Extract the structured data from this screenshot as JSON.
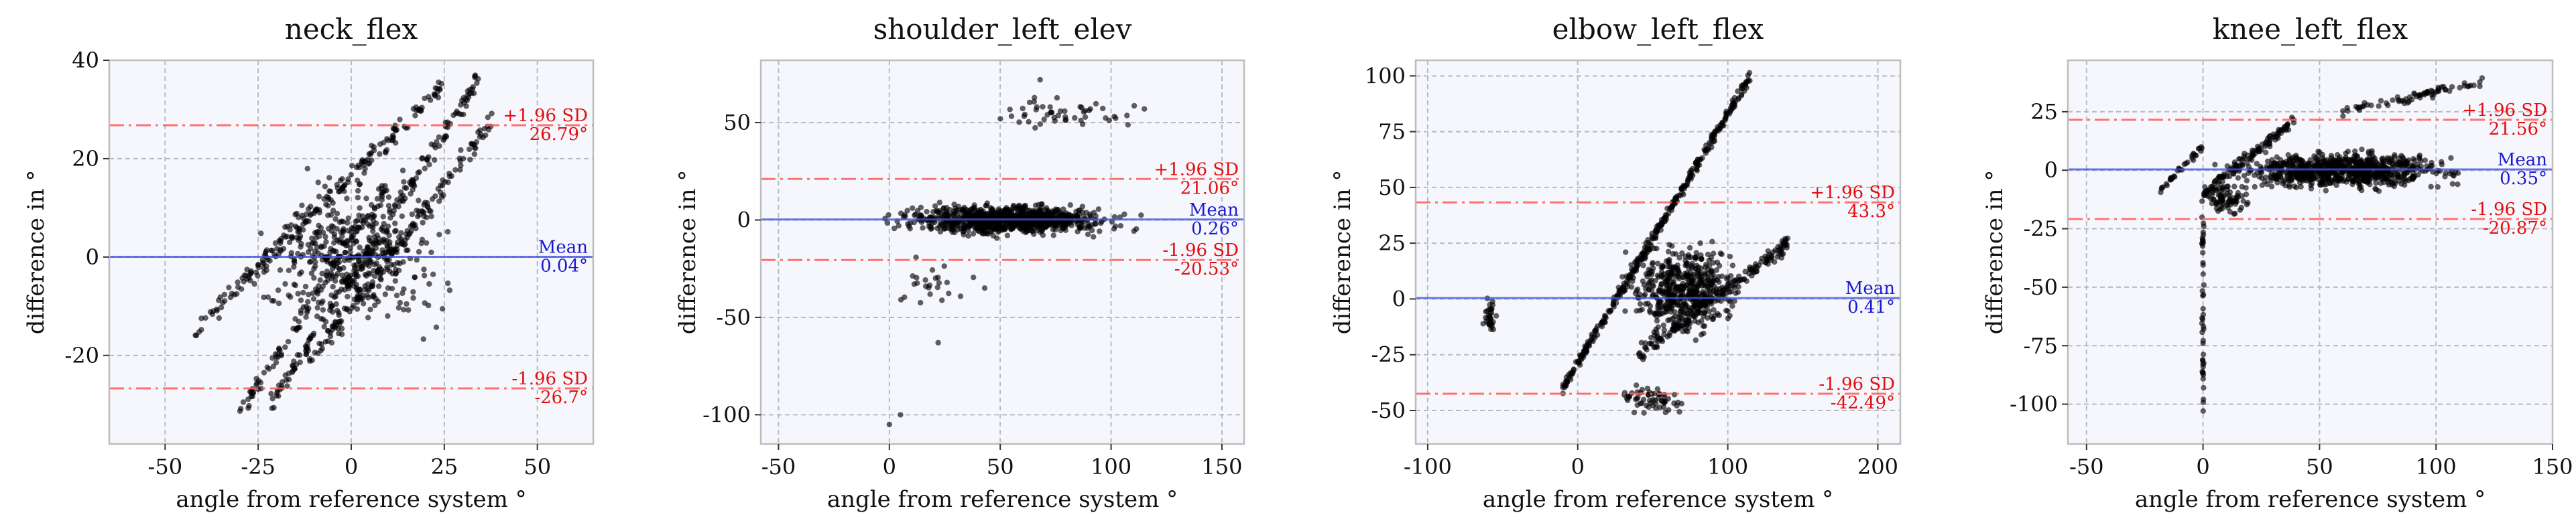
{
  "chart_data": [
    {
      "type": "scatter",
      "title": "neck_flex",
      "xlabel": "angle from reference system °",
      "ylabel": "difference in °",
      "xlim": [
        -65,
        65
      ],
      "ylim": [
        -38,
        40
      ],
      "xticks": [
        -50,
        -25,
        0,
        25,
        50
      ],
      "yticks": [
        -20,
        0,
        20,
        40
      ],
      "mean": 0.04,
      "upper": 26.79,
      "lower": -26.7,
      "labels": {
        "upper_name": "+1.96 SD",
        "upper_value": "26.79°",
        "mean_name": "Mean",
        "mean_value": "0.04°",
        "lower_name": "-1.96 SD",
        "lower_value": "-26.7°"
      },
      "clusters": [
        {
          "kind": "band",
          "x": [
            -42,
            25
          ],
          "y": [
            -15,
            35
          ],
          "spread": 3,
          "n": 180
        },
        {
          "kind": "band",
          "x": [
            -22,
            35
          ],
          "y": [
            -30,
            37
          ],
          "spread": 3,
          "n": 180
        },
        {
          "kind": "band",
          "x": [
            -12,
            38
          ],
          "y": [
            -22,
            28
          ],
          "spread": 3,
          "n": 150
        },
        {
          "kind": "band",
          "x": [
            -30,
            10
          ],
          "y": [
            -32,
            15
          ],
          "spread": 3,
          "n": 110
        },
        {
          "kind": "blob",
          "cx": 0,
          "cy": 0,
          "rx": 32,
          "ry": 20,
          "n": 420
        }
      ]
    },
    {
      "type": "scatter",
      "title": "shoulder_left_elev",
      "xlabel": "angle from reference system °",
      "ylabel": "difference in °",
      "xlim": [
        -58,
        160
      ],
      "ylim": [
        -115,
        82
      ],
      "xticks": [
        -50,
        0,
        50,
        100,
        150
      ],
      "yticks": [
        -100,
        -50,
        0,
        50
      ],
      "mean": 0.26,
      "upper": 21.06,
      "lower": -20.53,
      "labels": {
        "upper_name": "+1.96 SD",
        "upper_value": "21.06°",
        "mean_name": "Mean",
        "mean_value": "0.26°",
        "lower_name": "-1.96 SD",
        "lower_value": "-20.53°"
      },
      "clusters": [
        {
          "kind": "blob",
          "cx": 55,
          "cy": 0,
          "rx": 62,
          "ry": 10,
          "n": 900
        },
        {
          "kind": "band",
          "x": -8,
          "y": [
            -14,
            10
          ],
          "xto": 125,
          "yto": [
            6,
            16
          ],
          "n": 0
        },
        {
          "kind": "blob",
          "cx": 80,
          "cy": 55,
          "rx": 40,
          "ry": 10,
          "n": 50
        },
        {
          "kind": "blob",
          "cx": 20,
          "cy": -35,
          "rx": 25,
          "ry": 18,
          "n": 25
        },
        {
          "kind": "points",
          "pts": [
            [
              0,
              -105
            ],
            [
              5,
              -100
            ],
            [
              22,
              -63
            ],
            [
              68,
              72
            ],
            [
              115,
              57
            ]
          ]
        }
      ]
    },
    {
      "type": "scatter",
      "title": "elbow_left_flex",
      "xlabel": "angle from reference system °",
      "ylabel": "difference in °",
      "xlim": [
        -108,
        215
      ],
      "ylim": [
        -65,
        107
      ],
      "xticks": [
        -100,
        0,
        100,
        200
      ],
      "yticks": [
        -50,
        -25,
        0,
        25,
        50,
        75,
        100
      ],
      "mean": 0.41,
      "upper": 43.3,
      "lower": -42.49,
      "labels": {
        "upper_name": "+1.96 SD",
        "upper_value": "43.3°",
        "mean_name": "Mean",
        "mean_value": "0.41°",
        "lower_name": "-1.96 SD",
        "lower_value": "-42.49°"
      },
      "clusters": [
        {
          "kind": "band",
          "x": [
            -10,
            115
          ],
          "y": [
            -40,
            100
          ],
          "spread": 4,
          "n": 350
        },
        {
          "kind": "blob",
          "cx": 70,
          "cy": 5,
          "rx": 45,
          "ry": 25,
          "n": 500
        },
        {
          "kind": "band",
          "x": [
            40,
            140
          ],
          "y": [
            -25,
            25
          ],
          "spread": 6,
          "n": 200
        },
        {
          "kind": "blob",
          "cx": -58,
          "cy": -8,
          "rx": 6,
          "ry": 12,
          "n": 35
        },
        {
          "kind": "blob",
          "cx": 50,
          "cy": -45,
          "rx": 25,
          "ry": 8,
          "n": 60
        }
      ]
    },
    {
      "type": "scatter",
      "title": "knee_left_flex",
      "xlabel": "angle from reference system °",
      "ylabel": "difference in °",
      "xlim": [
        -58,
        150
      ],
      "ylim": [
        -117,
        47
      ],
      "xticks": [
        -50,
        0,
        50,
        100,
        150
      ],
      "yticks": [
        -100,
        -75,
        -50,
        -25,
        0,
        25
      ],
      "mean": 0.35,
      "upper": 21.56,
      "lower": -20.87,
      "labels": {
        "upper_name": "+1.96 SD",
        "upper_value": "21.56°",
        "mean_name": "Mean",
        "mean_value": "0.35°",
        "lower_name": "-1.96 SD",
        "lower_value": "-20.87°"
      },
      "clusters": [
        {
          "kind": "blob",
          "cx": 60,
          "cy": 0,
          "rx": 60,
          "ry": 10,
          "n": 800
        },
        {
          "kind": "band",
          "x": [
            0,
            40
          ],
          "y": [
            -10,
            22
          ],
          "spread": 4,
          "n": 120
        },
        {
          "kind": "band",
          "x": [
            60,
            120
          ],
          "y": [
            25,
            38
          ],
          "spread": 3,
          "n": 70
        },
        {
          "kind": "band",
          "x": [
            -20,
            0
          ],
          "y": [
            -10,
            10
          ],
          "spread": 2,
          "n": 35
        },
        {
          "kind": "vline",
          "x": 0,
          "y": [
            -105,
            -20
          ],
          "n": 45
        },
        {
          "kind": "blob",
          "cx": 10,
          "cy": -12,
          "rx": 12,
          "ry": 8,
          "n": 80
        }
      ]
    }
  ]
}
